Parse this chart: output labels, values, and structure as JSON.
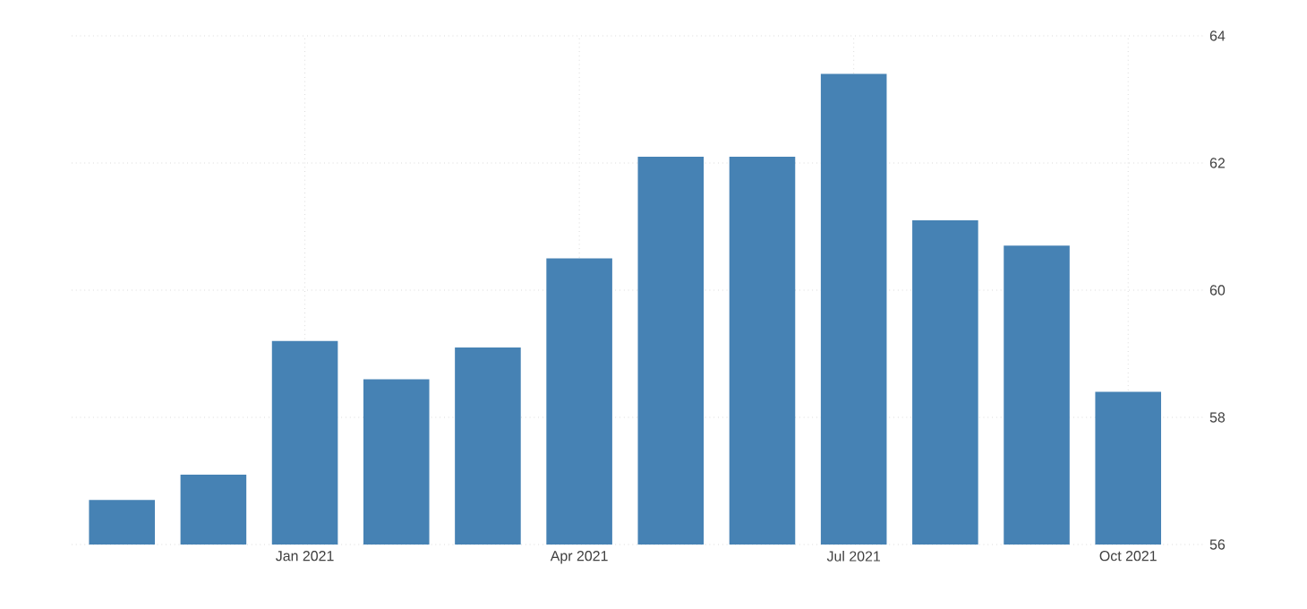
{
  "chart_data": {
    "type": "bar",
    "categories": [
      null,
      null,
      "Jan 2021",
      null,
      null,
      "Apr 2021",
      null,
      null,
      "Jul 2021",
      null,
      null,
      "Oct 2021"
    ],
    "values": [
      56.7,
      57.1,
      59.2,
      58.6,
      59.1,
      60.5,
      62.1,
      62.1,
      63.4,
      61.1,
      60.7,
      58.4
    ],
    "color": "#4682b4",
    "ylim": [
      56,
      64
    ],
    "yticks": [
      56,
      58,
      60,
      62,
      64
    ],
    "grid": true
  }
}
